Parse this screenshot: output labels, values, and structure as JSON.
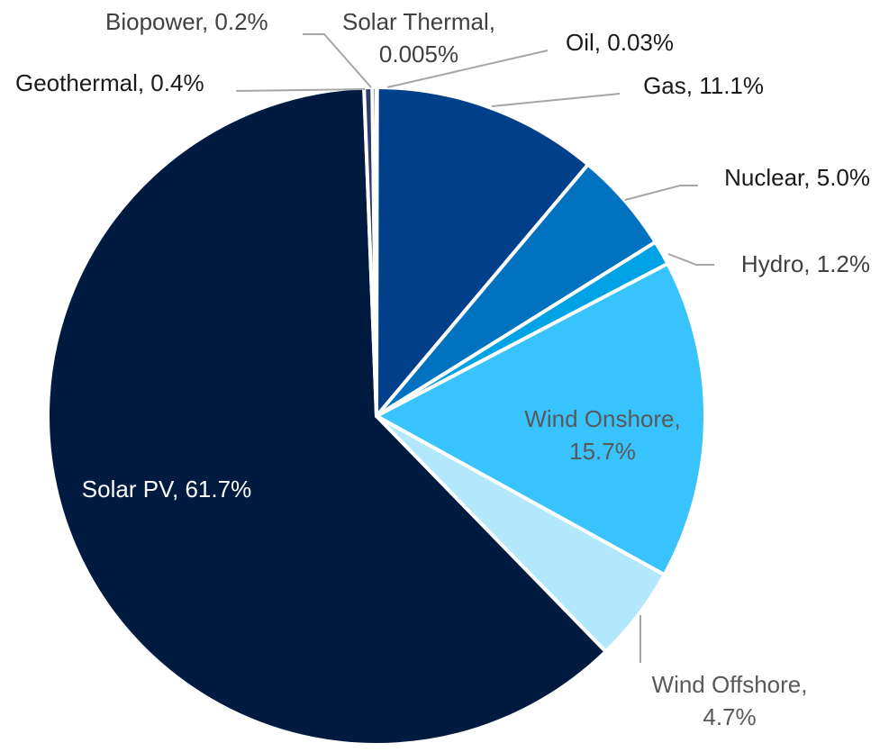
{
  "chart_data": {
    "type": "pie",
    "slices": [
      {
        "name": "Oil",
        "value": 0.03,
        "label_name": "Oil,",
        "label_value": "0.03%",
        "color": "#1f4e9a"
      },
      {
        "name": "Gas",
        "value": 11.1,
        "label_name": "Gas,",
        "label_value": "11.1%",
        "color": "#003f8a"
      },
      {
        "name": "Nuclear",
        "value": 5.0,
        "label_name": "Nuclear,",
        "label_value": "5.0%",
        "color": "#0072c0"
      },
      {
        "name": "Hydro",
        "value": 1.2,
        "label_name": "Hydro,",
        "label_value": "1.2%",
        "color": "#00a2e6"
      },
      {
        "name": "Wind Onshore",
        "value": 15.7,
        "label_name": "Wind Onshore,",
        "label_value": "15.7%",
        "color": "#38c3fd"
      },
      {
        "name": "Wind Offshore",
        "value": 4.7,
        "label_name": "Wind Offshore,",
        "label_value": "4.7%",
        "color": "#b3e8fc"
      },
      {
        "name": "Solar PV",
        "value": 61.7,
        "label_name": "Solar PV,",
        "label_value": "61.7%",
        "color": "#001a40"
      },
      {
        "name": "Geothermal",
        "value": 0.4,
        "label_name": "Geothermal,",
        "label_value": "0.4%",
        "color": "#2f3c6a"
      },
      {
        "name": "Biopower",
        "value": 0.2,
        "label_name": "Biopower,",
        "label_value": "0.2%",
        "color": "#1c2b55"
      },
      {
        "name": "Solar Thermal",
        "value": 0.005,
        "label_name": "Solar Thermal,",
        "label_value": "0.005%",
        "color": "#7f8fb0"
      }
    ],
    "legend": "none"
  }
}
